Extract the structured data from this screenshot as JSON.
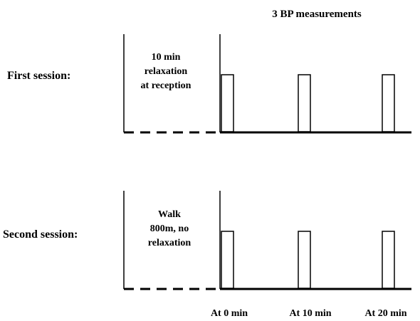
{
  "title": "3 BP measurements",
  "sessions": [
    {
      "label": "First session:",
      "pre_text_lines": [
        "10 min",
        "relaxation",
        "at reception"
      ]
    },
    {
      "label": "Second session:",
      "pre_text_lines": [
        "Walk",
        "800m, no",
        "relaxation"
      ]
    }
  ],
  "measurement_times": [
    "At 0 min",
    "At 10 min",
    "At 20 min"
  ],
  "colors": {
    "line": "#000000",
    "background": "#ffffff"
  }
}
